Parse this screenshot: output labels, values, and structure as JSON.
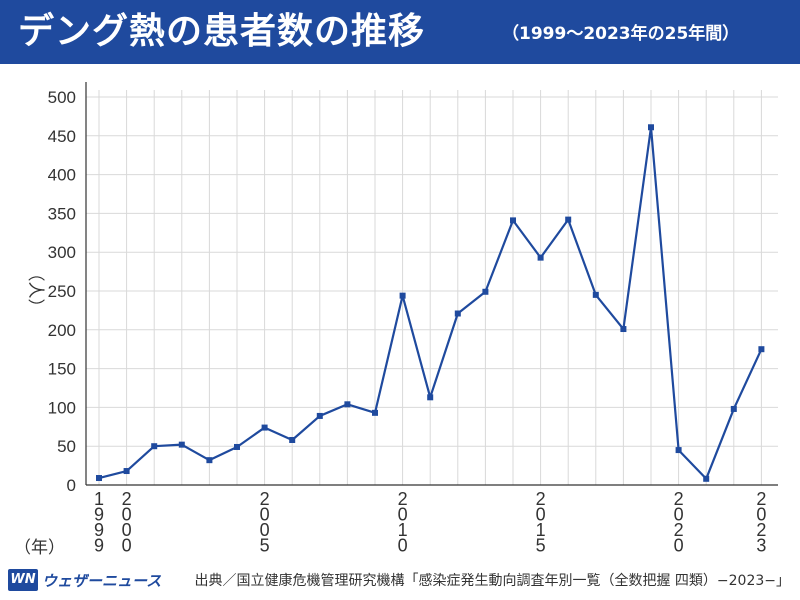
{
  "header": {
    "title": "デング熱の患者数の推移",
    "subtitle": "（1999〜2023年の25年間）"
  },
  "colors": {
    "header_bg": "#1f4a9e",
    "line": "#1f4a9e",
    "grid": "#d9d9d9"
  },
  "chart_data": {
    "type": "line",
    "title": "デング熱の患者数の推移",
    "subtitle": "（1999〜2023年の25年間）",
    "ylabel": "（人）",
    "xlabel": "（年）",
    "ylim": [
      0,
      500
    ],
    "yticks": [
      0,
      50,
      100,
      150,
      200,
      250,
      300,
      350,
      400,
      450,
      500
    ],
    "x": [
      1999,
      2000,
      2001,
      2002,
      2003,
      2004,
      2005,
      2006,
      2007,
      2008,
      2009,
      2010,
      2011,
      2012,
      2013,
      2014,
      2015,
      2016,
      2017,
      2018,
      2019,
      2020,
      2021,
      2022,
      2023
    ],
    "xtick_labels": [
      "1999",
      "2000",
      "2005",
      "2010",
      "2015",
      "2020",
      "2023"
    ],
    "series": [
      {
        "values": [
          9,
          18,
          50,
          52,
          32,
          49,
          74,
          58,
          89,
          104,
          93,
          244,
          113,
          221,
          249,
          341,
          293,
          342,
          245,
          201,
          461,
          45,
          8,
          98,
          175
        ]
      }
    ],
    "grid": true,
    "legend": "none"
  },
  "footer": {
    "logo_mark": "WN",
    "logo_text": "ウェザーニュース",
    "source": "出典／国立健康危機管理研究機構「感染症発生動向調査年別一覧（全数把握 四類）−2023−」"
  }
}
